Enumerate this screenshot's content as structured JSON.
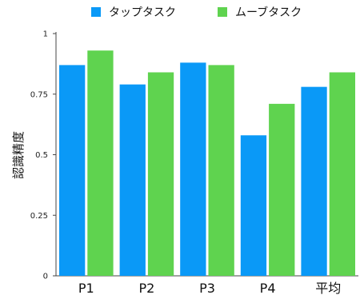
{
  "chart_data": {
    "type": "bar",
    "categories": [
      "P1",
      "P2",
      "P3",
      "P4",
      "平均"
    ],
    "series": [
      {
        "name": "タップタスク",
        "color": "#0a99f7",
        "values": [
          0.87,
          0.79,
          0.88,
          0.58,
          0.78
        ]
      },
      {
        "name": "ムーブタスク",
        "color": "#5fd34f",
        "values": [
          0.93,
          0.84,
          0.87,
          0.71,
          0.84
        ]
      }
    ],
    "ylabel": "認識精度",
    "xlabel": "",
    "ylim": [
      0,
      1
    ],
    "yticks": [
      {
        "value": 0,
        "label": "0"
      },
      {
        "value": 0.25,
        "label": "0.25"
      },
      {
        "value": 0.5,
        "label": "0.5"
      },
      {
        "value": 0.75,
        "label": "0.75"
      },
      {
        "value": 1,
        "label": "1"
      }
    ],
    "grid": false,
    "legend_position": "top"
  }
}
